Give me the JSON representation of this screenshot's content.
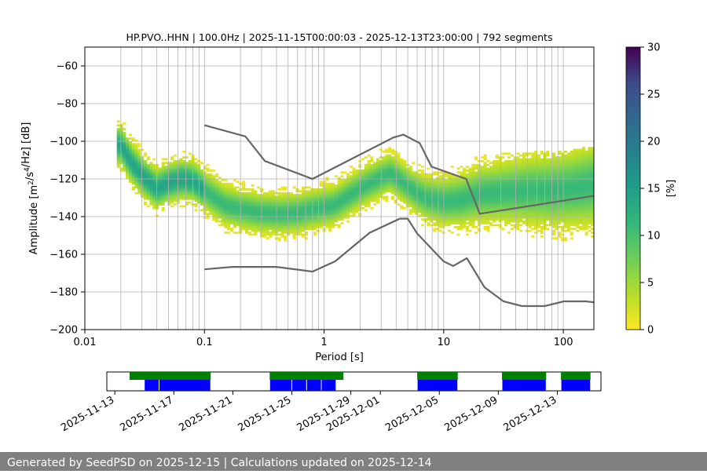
{
  "chart_data": [
    {
      "type": "heatmap",
      "title": "HP.PVO..HHN | 100.0Hz | 2025-11-15T00:00:03 - 2025-12-13T23:00:00 | 792 segments",
      "xlabel": "Period [s]",
      "ylabel": "Amplitude [m²/s⁴/Hz] [dB]",
      "xscale": "log",
      "xlim": [
        0.01,
        180
      ],
      "ylim": [
        -200,
        -50
      ],
      "xticks": [
        0.01,
        0.1,
        1,
        10,
        100
      ],
      "xtick_labels": [
        "0.01",
        "0.1",
        "1",
        "10",
        "100"
      ],
      "yticks": [
        -200,
        -180,
        -160,
        -140,
        -120,
        -100,
        -80,
        -60
      ],
      "ytick_labels": [
        "−200",
        "−180",
        "−160",
        "−140",
        "−120",
        "−100",
        "−80",
        "−60"
      ],
      "grid": true,
      "colorbar": {
        "label": "[%]",
        "range": [
          0,
          30
        ],
        "ticks": [
          0,
          5,
          10,
          15,
          20,
          25,
          30
        ],
        "tick_labels": [
          "0",
          "5",
          "10",
          "15",
          "20",
          "25",
          "30"
        ],
        "colormap": "viridis"
      },
      "noise_models": {
        "high": {
          "period": [
            0.1,
            0.22,
            0.32,
            0.8,
            3.8,
            4.6,
            6.3,
            7.9,
            15.4,
            20,
            180
          ],
          "db": [
            -91.5,
            -97.4,
            -110.5,
            -120,
            -98,
            -96.5,
            -101,
            -113.5,
            -120,
            -138.5,
            -129
          ]
        },
        "low": {
          "period": [
            0.1,
            0.17,
            0.4,
            0.8,
            1.24,
            2.4,
            4.3,
            5,
            6,
            10,
            12,
            15.6,
            21.9,
            31.6,
            45,
            70,
            101,
            154,
            180
          ],
          "db": [
            -168,
            -166.7,
            -166.7,
            -169.2,
            -163.7,
            -148.6,
            -141.1,
            -141.1,
            -149,
            -163.8,
            -166.2,
            -162.1,
            -177.5,
            -185,
            -187.5,
            -187.5,
            -185,
            -185,
            -185.5
          ]
        }
      },
      "psd_mode": {
        "period": [
          0.02,
          0.025,
          0.03,
          0.04,
          0.05,
          0.065,
          0.08,
          0.1,
          0.15,
          0.2,
          0.3,
          0.45,
          0.6,
          0.8,
          1.2,
          2,
          3,
          3.6,
          4.2,
          5.3,
          7,
          10,
          14,
          20,
          30,
          50,
          80,
          120,
          180
        ],
        "db": [
          -102,
          -112,
          -118,
          -125,
          -122,
          -120,
          -121,
          -126,
          -134,
          -136,
          -138,
          -138.5,
          -138,
          -136,
          -134,
          -125,
          -119,
          -117,
          -120,
          -125,
          -130,
          -132,
          -131,
          -128,
          -127,
          -126,
          -126,
          -125,
          -123
        ]
      }
    },
    {
      "type": "timeline",
      "x_tick_labels": [
        "2025-11-13",
        "2025-11-17",
        "2025-11-21",
        "2025-11-25",
        "2025-11-29",
        "2025-12-01",
        "2025-12-05",
        "2025-12-09",
        "2025-12-13"
      ],
      "colors": {
        "data_availability": "#008000",
        "psd_computed": "#0000ff"
      },
      "data_availability": [
        [
          "2025-11-14T00",
          "2025-11-19T12"
        ],
        [
          "2025-11-23T12",
          "2025-11-28T12"
        ],
        [
          "2025-12-03T12",
          "2025-12-06T06"
        ],
        [
          "2025-12-09T06",
          "2025-12-12T06"
        ],
        [
          "2025-12-13T06",
          "2025-12-15T06"
        ]
      ],
      "psd_computed": [
        [
          "2025-11-15T00",
          "2025-11-16T00"
        ],
        [
          "2025-11-16T00",
          "2025-11-19T12"
        ],
        [
          "2025-11-23T12",
          "2025-11-25T00"
        ],
        [
          "2025-11-25T00",
          "2025-11-26T00"
        ],
        [
          "2025-11-26T00",
          "2025-11-27T00"
        ],
        [
          "2025-11-27T00",
          "2025-11-28T00"
        ],
        [
          "2025-12-03T12",
          "2025-12-06T06"
        ],
        [
          "2025-12-09T06",
          "2025-12-12T06"
        ],
        [
          "2025-12-13T06",
          "2025-12-15T06"
        ]
      ]
    }
  ],
  "footer_text": "Generated by SeedPSD on 2025-12-15 | Calculations updated on 2025-12-14"
}
